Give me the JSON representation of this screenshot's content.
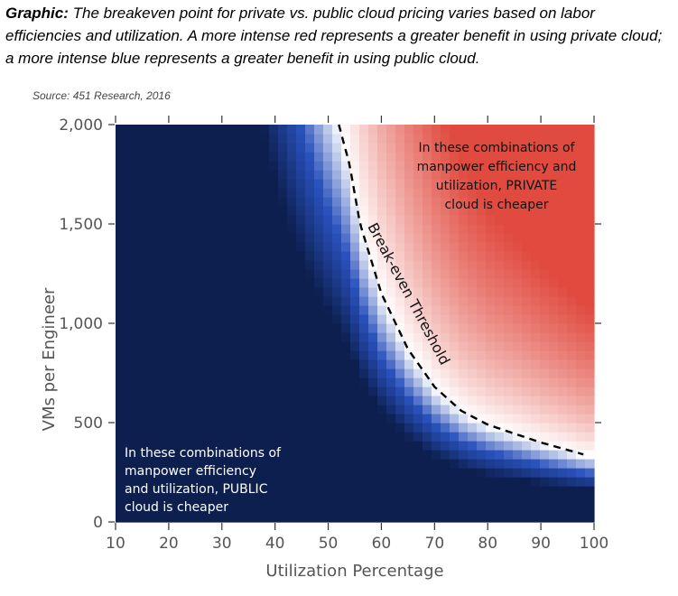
{
  "caption": {
    "prefix": "Graphic:",
    "text": " The breakeven point for private vs. public cloud pricing varies based on labor efficiencies and utilization. A more intense red represents a greater benefit in using private cloud; a more intense blue represents a greater benefit in using public cloud."
  },
  "source": "Source: 451 Research, 2016",
  "colors": {
    "public": "#0d1f4e",
    "mid_blue": "#2a52be",
    "neutral": "#ffffff",
    "private": "#e04a3f"
  },
  "chart_data": {
    "type": "heatmap",
    "xlabel": "Utilization Percentage",
    "ylabel": "VMs per Engineer",
    "xlim": [
      10,
      100
    ],
    "ylim": [
      0,
      2000
    ],
    "x_ticks": [
      "10",
      "20",
      "30",
      "40",
      "50",
      "60",
      "70",
      "80",
      "90",
      "100"
    ],
    "y_ticks": [
      "0",
      "500",
      "1,000",
      "1,500",
      "2,000"
    ],
    "breakeven_curve": [
      {
        "x": 52,
        "y": 2000
      },
      {
        "x": 54,
        "y": 1800
      },
      {
        "x": 56,
        "y": 1500
      },
      {
        "x": 60,
        "y": 1150
      },
      {
        "x": 65,
        "y": 870
      },
      {
        "x": 70,
        "y": 680
      },
      {
        "x": 75,
        "y": 560
      },
      {
        "x": 80,
        "y": 490
      },
      {
        "x": 90,
        "y": 400
      },
      {
        "x": 98,
        "y": 340
      }
    ],
    "annotations": {
      "private_lines": [
        "In these combinations of",
        "manpower efficiency and",
        "utilization, PRIVATE",
        "cloud is cheaper"
      ],
      "public_lines": [
        "In these combinations of",
        "manpower efficiency",
        "and utilization, PUBLIC",
        "cloud is cheaper"
      ],
      "threshold_label": "Break-even Threshold"
    }
  }
}
